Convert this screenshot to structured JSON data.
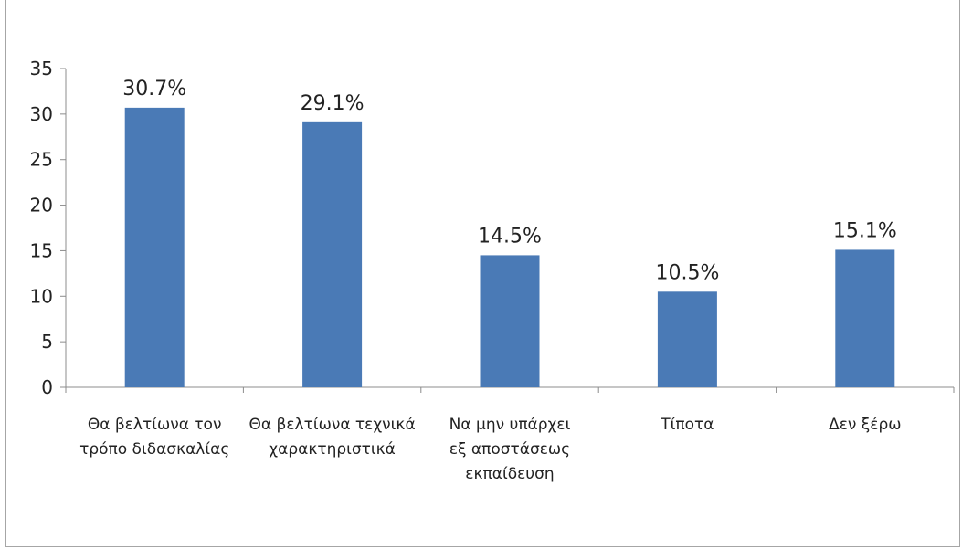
{
  "chart_data": {
    "type": "bar",
    "categories": [
      [
        "Θα βελτίωνα τον",
        "τρόπο διδασκαλίας"
      ],
      [
        "Θα βελτίωνα τεχνικά",
        "χαρακτηριστικά"
      ],
      [
        "Να μην υπάρχει",
        "εξ αποστάσεως",
        "εκπαίδευση"
      ],
      [
        "Τίποτα"
      ],
      [
        "Δεν ξέρω"
      ]
    ],
    "values": [
      30.7,
      29.1,
      14.5,
      10.5,
      15.1
    ],
    "data_labels": [
      "30.7%",
      "29.1%",
      "14.5%",
      "10.5%",
      "15.1%"
    ],
    "ylim": [
      0,
      35
    ],
    "yticks": [
      "0",
      "5",
      "10",
      "15",
      "20",
      "25",
      "30",
      "35"
    ],
    "bar_color": "#4a7ab6",
    "axis_color": "#8c8c8c",
    "grid": false,
    "legend": "none"
  }
}
